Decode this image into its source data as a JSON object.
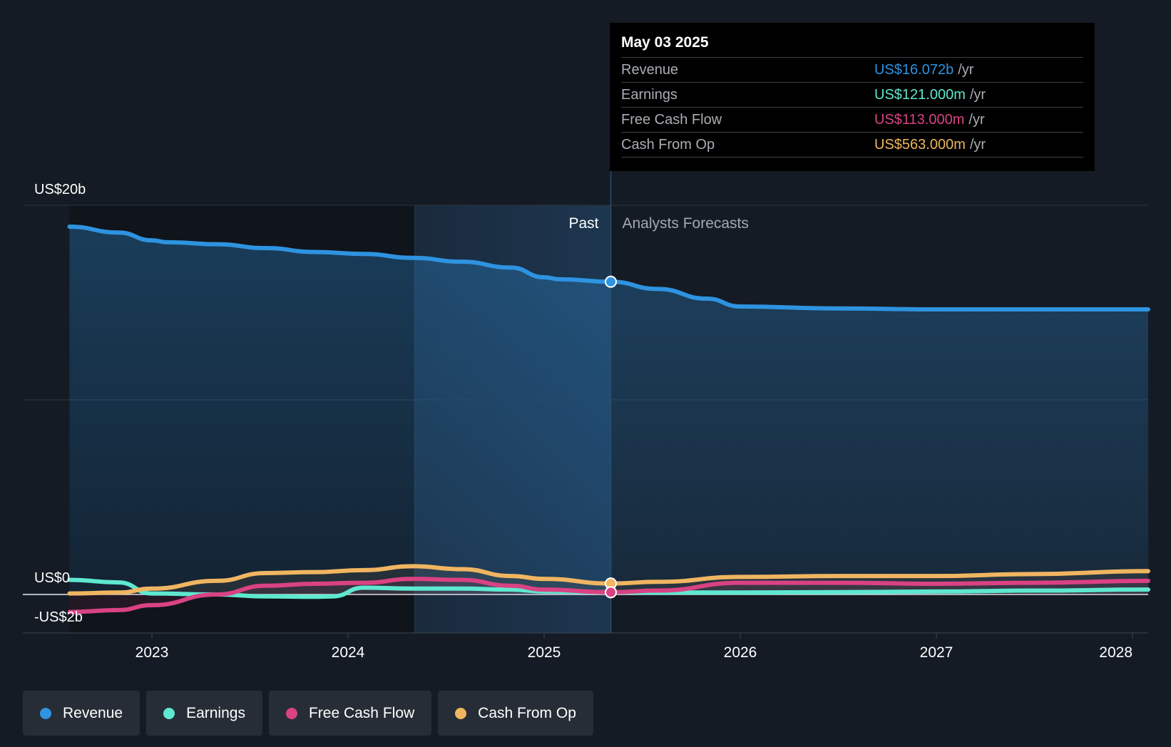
{
  "tooltip": {
    "date": "May 03 2025",
    "rows": [
      {
        "label": "Revenue",
        "value": "US$16.072b",
        "unit": "/yr",
        "color": "#2e93e0"
      },
      {
        "label": "Earnings",
        "value": "US$121.000m",
        "unit": "/yr",
        "color": "#5ee8d0"
      },
      {
        "label": "Free Cash Flow",
        "value": "US$113.000m",
        "unit": "/yr",
        "color": "#d94283"
      },
      {
        "label": "Cash From Op",
        "value": "US$563.000m",
        "unit": "/yr",
        "color": "#f0b561"
      }
    ]
  },
  "labels": {
    "past": "Past",
    "forecast": "Analysts Forecasts"
  },
  "legend": [
    {
      "label": "Revenue",
      "color": "#2e93e0"
    },
    {
      "label": "Earnings",
      "color": "#5ee8d0"
    },
    {
      "label": "Free Cash Flow",
      "color": "#d94283"
    },
    {
      "label": "Cash From Op",
      "color": "#f0b561"
    }
  ],
  "chart_data": {
    "type": "area",
    "x_unit": "year",
    "y_unit": "US$ billions",
    "ylim": [
      -2,
      20
    ],
    "xlim": [
      2022.35,
      2028.08
    ],
    "y_ticks": [
      {
        "value": 20,
        "label": "US$20b"
      },
      {
        "value": 0,
        "label": "US$0"
      },
      {
        "value": -2,
        "label": "-US$2b"
      }
    ],
    "y_gridlines": [
      20,
      10,
      0
    ],
    "x_ticks": [
      {
        "value": 2023,
        "label": "2023"
      },
      {
        "value": 2024,
        "label": "2024"
      },
      {
        "value": 2025,
        "label": "2025"
      },
      {
        "value": 2026,
        "label": "2026"
      },
      {
        "value": 2027,
        "label": "2027"
      },
      {
        "value": 2028,
        "label": "2028"
      }
    ],
    "past_forecast_divider": 2025.34,
    "highlight_start": 2024.34,
    "grid": true,
    "legend_position": "bottom-left",
    "series": [
      {
        "name": "Revenue",
        "color": "#2e93e0",
        "filled": true,
        "x": [
          2022.58,
          2022.83,
          2023.0,
          2023.08,
          2023.33,
          2023.58,
          2023.83,
          2024.08,
          2024.33,
          2024.58,
          2024.83,
          2025.0,
          2025.08,
          2025.34,
          2025.58,
          2025.83,
          2026.0,
          2026.5,
          2027.0,
          2027.5,
          2028.08
        ],
        "y": [
          18.9,
          18.6,
          18.2,
          18.1,
          18.0,
          17.8,
          17.6,
          17.5,
          17.3,
          17.1,
          16.8,
          16.3,
          16.2,
          16.07,
          15.7,
          15.2,
          14.8,
          14.7,
          14.65,
          14.65,
          14.65
        ]
      },
      {
        "name": "Earnings",
        "color": "#5ee8d0",
        "filled": false,
        "x": [
          2022.58,
          2022.83,
          2023.0,
          2023.33,
          2023.58,
          2023.83,
          2023.92,
          2024.08,
          2024.33,
          2024.58,
          2024.83,
          2025.0,
          2025.34,
          2025.58,
          2026.0,
          2026.5,
          2027.0,
          2027.5,
          2028.08
        ],
        "y": [
          0.75,
          0.62,
          0.05,
          0.0,
          -0.1,
          -0.12,
          -0.1,
          0.35,
          0.3,
          0.3,
          0.25,
          0.15,
          0.121,
          0.1,
          0.1,
          0.12,
          0.15,
          0.2,
          0.25
        ]
      },
      {
        "name": "Free Cash Flow",
        "color": "#d94283",
        "filled": false,
        "x": [
          2022.58,
          2022.83,
          2023.0,
          2023.33,
          2023.58,
          2023.83,
          2024.08,
          2024.33,
          2024.58,
          2024.83,
          2025.0,
          2025.34,
          2025.58,
          2026.0,
          2026.5,
          2027.0,
          2027.5,
          2028.08
        ],
        "y": [
          -0.9,
          -0.8,
          -0.55,
          0.0,
          0.45,
          0.55,
          0.6,
          0.8,
          0.75,
          0.45,
          0.25,
          0.113,
          0.2,
          0.6,
          0.6,
          0.55,
          0.6,
          0.7
        ]
      },
      {
        "name": "Cash From Op",
        "color": "#f0b561",
        "filled": false,
        "x": [
          2022.58,
          2022.83,
          2023.0,
          2023.33,
          2023.58,
          2023.83,
          2024.08,
          2024.33,
          2024.58,
          2024.83,
          2025.0,
          2025.34,
          2025.58,
          2026.0,
          2026.5,
          2027.0,
          2027.5,
          2028.08
        ],
        "y": [
          0.05,
          0.1,
          0.3,
          0.7,
          1.1,
          1.15,
          1.25,
          1.45,
          1.3,
          0.95,
          0.8,
          0.563,
          0.65,
          0.9,
          0.95,
          0.95,
          1.05,
          1.2
        ]
      }
    ]
  }
}
